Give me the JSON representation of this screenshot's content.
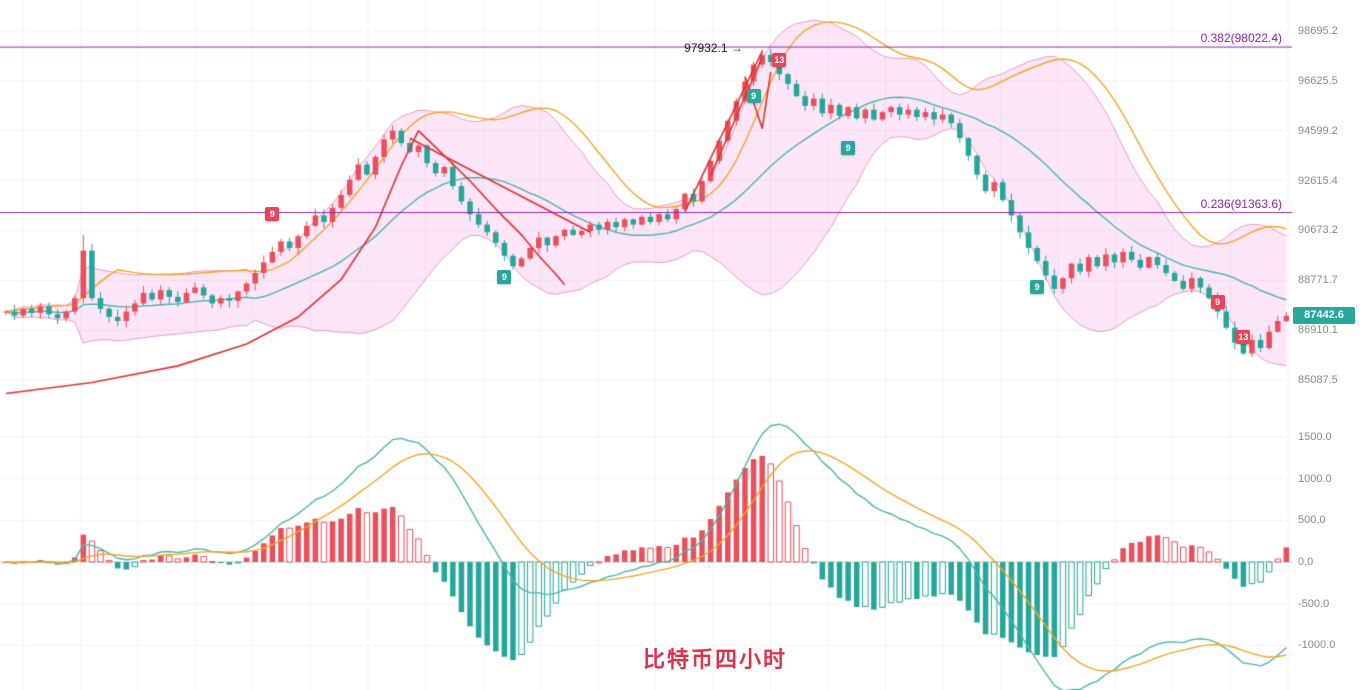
{
  "title": {
    "text": "比特币四小时",
    "color": "#e0314b"
  },
  "price_badge": {
    "value": "87442.6",
    "color": "#2aa79b"
  },
  "peak_label": {
    "text": "97932.1",
    "arrow": "→",
    "price": 97932.1,
    "index": 88
  },
  "fib_levels": [
    {
      "label": "0.382(98022.4)",
      "price": 98022.4
    },
    {
      "label": "0.236(91363.6)",
      "price": 91363.6
    }
  ],
  "y_axis_main": {
    "labels": [
      {
        "text": "98695.2",
        "value": 98695.2
      },
      {
        "text": "96625.5",
        "value": 96625.5
      },
      {
        "text": "94599.2",
        "value": 94599.2
      },
      {
        "text": "92615.4",
        "value": 92615.4
      },
      {
        "text": "90673.2",
        "value": 90673.2
      },
      {
        "text": "88771.7",
        "value": 88771.7
      },
      {
        "text": "86910.1",
        "value": 86910.1
      },
      {
        "text": "85087.5",
        "value": 85087.5
      }
    ]
  },
  "y_axis_sub": {
    "labels": [
      {
        "text": "1500.0",
        "value": 1500
      },
      {
        "text": "1000.0",
        "value": 1000
      },
      {
        "text": "500.0",
        "value": 500
      },
      {
        "text": "0.0",
        "value": 0
      },
      {
        "text": "-500.0",
        "value": -500
      },
      {
        "text": "-1000.0",
        "value": -1000
      }
    ]
  },
  "markers": [
    {
      "index": 31,
      "price": 91300,
      "label": "9",
      "color": "#e8445a"
    },
    {
      "index": 58,
      "price": 88900,
      "label": "9",
      "color": "#2aa79b"
    },
    {
      "index": 87,
      "price": 96000,
      "label": "9",
      "color": "#2aa79b"
    },
    {
      "index": 90,
      "price": 97500,
      "label": "13",
      "color": "#e8445a"
    },
    {
      "index": 98,
      "price": 93900,
      "label": "9",
      "color": "#2aa79b"
    },
    {
      "index": 120,
      "price": 88500,
      "label": "9",
      "color": "#2aa79b"
    },
    {
      "index": 141,
      "price": 87950,
      "label": "9",
      "color": "#e8445a"
    },
    {
      "index": 144,
      "price": 86650,
      "label": "13",
      "color": "#e8445a"
    }
  ],
  "colors": {
    "up": "#e8505b",
    "down": "#26a69a",
    "boll_fill": "rgba(236,64,198,0.13)",
    "boll_edge": "rgba(214,51,132,0.45)",
    "mid_line": "#4db6ac",
    "upper_ma_line": "#f5a623",
    "trend_line": "#e03131",
    "fib_line": "#8e24aa",
    "macd_dif": "#4db6ac",
    "macd_dea": "#f5a623",
    "hist_pos": "#e8505b",
    "hist_neg": "#26a69a",
    "grid": "#f3f3f3",
    "zero_line": "#cfcfcf",
    "axis_text": "#8a8a8a"
  },
  "chart_data": {
    "type": "candlestick",
    "title": "比特币四小时",
    "timeframe": "4h",
    "last_price": 87442.6,
    "marked_high": 97932.1,
    "ylim_labels": [
      85087.5,
      98695.2
    ],
    "closes": [
      87600,
      87450,
      87700,
      87550,
      87800,
      87500,
      87350,
      87600,
      88100,
      89900,
      88100,
      87700,
      87400,
      87250,
      87600,
      87900,
      88300,
      88050,
      88400,
      88150,
      87950,
      88300,
      88500,
      88200,
      87900,
      88100,
      88000,
      88350,
      88650,
      89050,
      89450,
      89850,
      90250,
      90000,
      90450,
      90850,
      91250,
      91000,
      91550,
      92050,
      92650,
      93250,
      92850,
      93550,
      94250,
      94599,
      94100,
      93750,
      94000,
      93300,
      92900,
      93150,
      92400,
      91800,
      91300,
      90900,
      90600,
      90200,
      89700,
      89300,
      89600,
      90000,
      90400,
      90100,
      90450,
      90700,
      90500,
      90650,
      90900,
      90700,
      91000,
      90800,
      91100,
      90900,
      91200,
      91000,
      91300,
      91100,
      91500,
      92100,
      91800,
      92600,
      93400,
      94200,
      95000,
      95800,
      96600,
      97300,
      97700,
      97400,
      96900,
      96500,
      96000,
      95600,
      95900,
      95300,
      95650,
      95200,
      95550,
      95100,
      95450,
      95050,
      95350,
      95550,
      95250,
      95450,
      95150,
      95350,
      95050,
      95250,
      94900,
      94300,
      93600,
      92850,
      92200,
      92550,
      91850,
      91250,
      90600,
      90000,
      89500,
      88950,
      88450,
      88850,
      89400,
      89100,
      89650,
      89300,
      89750,
      89450,
      89850,
      89550,
      89250,
      89650,
      89350,
      89050,
      88750,
      88450,
      88850,
      88500,
      88100,
      87600,
      87000,
      86450,
      86050,
      86550,
      86250,
      86850,
      87250,
      87442.6
    ],
    "wick_high_overrides": {
      "9": 90500,
      "88": 97932.1
    },
    "indicators": {
      "bollinger": {
        "period": 20,
        "mult": 2
      },
      "macd": {
        "fast": 12,
        "slow": 26,
        "signal": 9,
        "bar_scale": 2
      }
    },
    "sub_chart": {
      "type": "macd_histogram",
      "ylim": [
        -1000,
        1500
      ]
    },
    "annotations": {
      "trend_lines": [
        [
          [
            0,
            84600
          ],
          [
            10,
            85000
          ],
          [
            20,
            85600
          ],
          [
            28,
            86400
          ],
          [
            34,
            87400
          ],
          [
            39,
            88800
          ],
          [
            43,
            90800
          ],
          [
            46,
            93200
          ],
          [
            48,
            94600
          ]
        ],
        [
          [
            48,
            94600
          ],
          [
            51,
            93600
          ],
          [
            54,
            92600
          ],
          [
            57,
            91500
          ],
          [
            60,
            90500
          ],
          [
            62,
            89700
          ],
          [
            64,
            89000
          ],
          [
            65,
            88600
          ]
        ],
        [
          [
            47,
            94300
          ],
          [
            68,
            90600
          ]
        ],
        [
          [
            79,
            91400
          ],
          [
            88,
            97850
          ]
        ],
        [
          [
            82,
            92800
          ],
          [
            88,
            97600
          ]
        ],
        [
          [
            86,
            96800
          ],
          [
            88,
            94700
          ],
          [
            89,
            97000
          ]
        ]
      ]
    }
  }
}
